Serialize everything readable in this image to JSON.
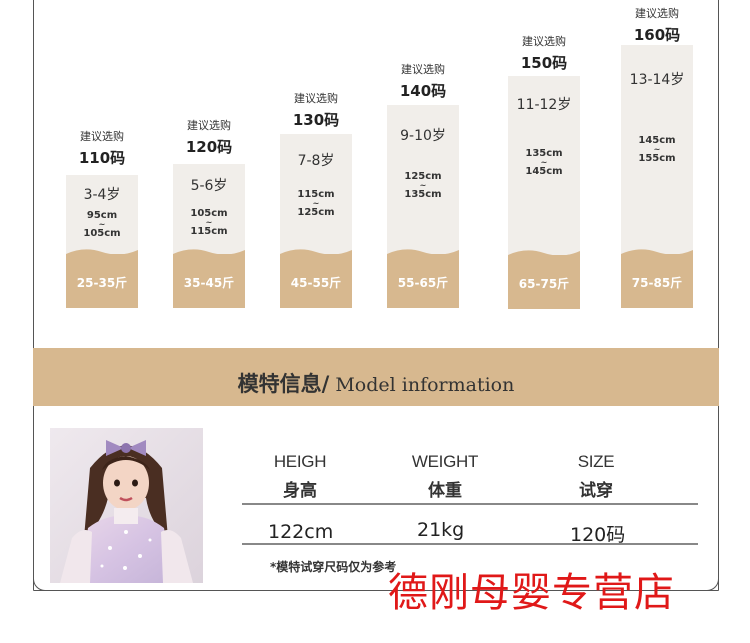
{
  "sizes": [
    {
      "recommend": "建议选购",
      "code": "110码",
      "age": "3-4岁",
      "height_min": "95cm",
      "tilde": "~",
      "height_max": "105cm",
      "weight": "25-35斤"
    },
    {
      "recommend": "建议选购",
      "code": "120码",
      "age": "5-6岁",
      "height_min": "105cm",
      "tilde": "~",
      "height_max": "115cm",
      "weight": "35-45斤"
    },
    {
      "recommend": "建议选购",
      "code": "130码",
      "age": "7-8岁",
      "height_min": "115cm",
      "tilde": "~",
      "height_max": "125cm",
      "weight": "45-55斤"
    },
    {
      "recommend": "建议选购",
      "code": "140码",
      "age": "9-10岁",
      "height_min": "125cm",
      "tilde": "~",
      "height_max": "135cm",
      "weight": "55-65斤"
    },
    {
      "recommend": "建议选购",
      "code": "150码",
      "age": "11-12岁",
      "height_min": "135cm",
      "tilde": "~",
      "height_max": "145cm",
      "weight": "65-75斤"
    },
    {
      "recommend": "建议选购",
      "code": "160码",
      "age": "13-14岁",
      "height_min": "145cm",
      "tilde": "~",
      "height_max": "155cm",
      "weight": "75-85斤"
    }
  ],
  "model_section": {
    "title_cn": "模特信息/",
    "title_en": " Model information"
  },
  "table": {
    "headers": [
      {
        "en": "HEIGH",
        "cn": "身高"
      },
      {
        "en": "WEIGHT",
        "cn": "体重"
      },
      {
        "en": "SIZE",
        "cn": "试穿"
      }
    ],
    "values": [
      "122cm",
      "21kg",
      "120码"
    ],
    "note": "*模特试穿尺码仅为参考"
  },
  "watermark": "德刚母婴专营店",
  "colors": {
    "accent_tan": "#d7b88f",
    "card_bg": "#f1eeea",
    "watermark_red": "#e01818"
  }
}
